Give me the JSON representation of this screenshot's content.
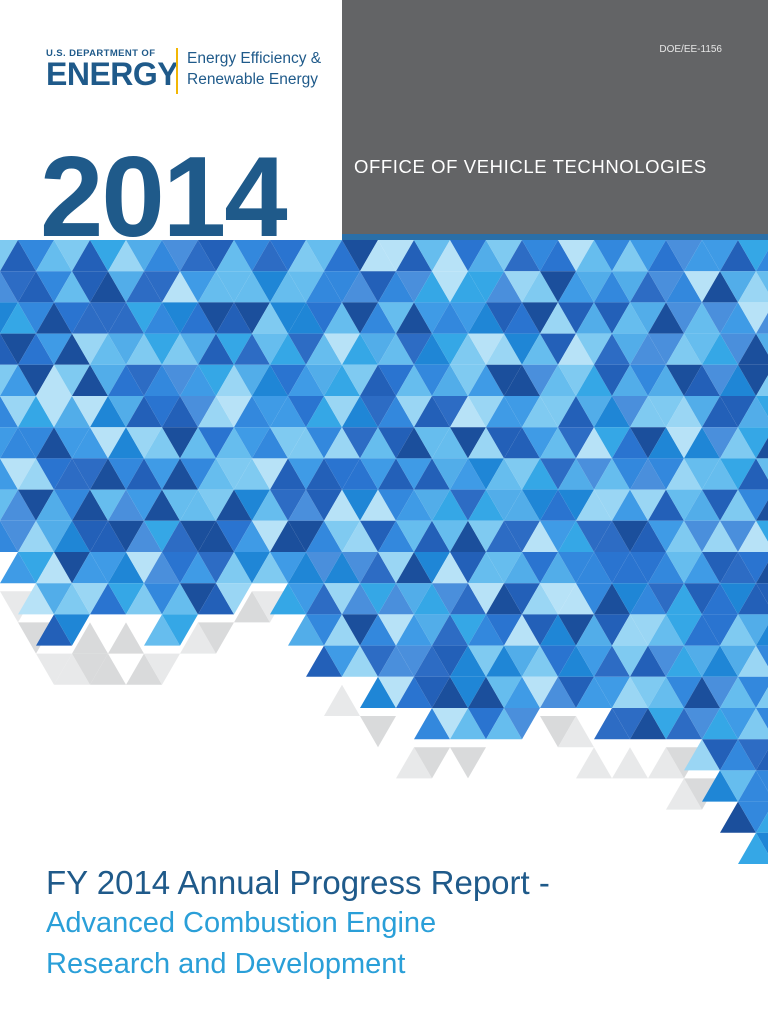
{
  "logo": {
    "department_line": "U.S. DEPARTMENT OF",
    "department_name": "ENERGY",
    "office_line_1": "Energy Efficiency &",
    "office_line_2": "Renewable Energy"
  },
  "header": {
    "year": "2014",
    "document_number": "DOE/EE-1156",
    "office_name": "OFFICE OF VEHICLE TECHNOLOGIES"
  },
  "report": {
    "title": "FY 2014 Annual Progress Report -",
    "subtitle_line_1": "Advanced Combustion Engine",
    "subtitle_line_2": "Research and Development"
  },
  "colors": {
    "brand_blue": "#1f5a8a",
    "accent_blue": "#2a9fd8",
    "header_grey": "#636466",
    "logo_divider": "#f2b705"
  },
  "artwork": {
    "description_icon": "geometric-blue-triangle-mosaic"
  }
}
